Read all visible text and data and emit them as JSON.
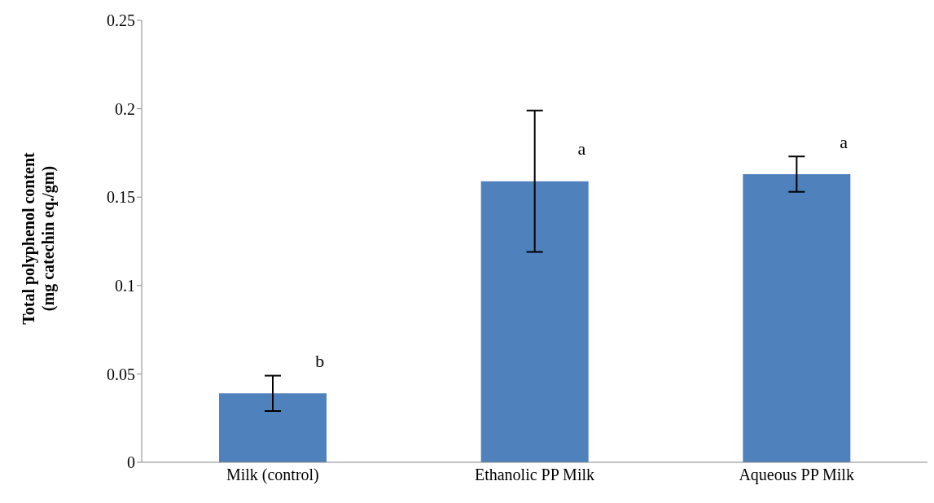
{
  "chart_data": {
    "type": "bar",
    "ylabel": "Total polyphenol content\n(mg catechin eq./gm)",
    "categories": [
      "Milk (control)",
      "Ethanolic PP Milk",
      "Aqueous PP Milk"
    ],
    "values": [
      0.039,
      0.159,
      0.163
    ],
    "errors": [
      0.01,
      0.04,
      0.01
    ],
    "color": "#4f81bd",
    "ylim": [
      0,
      0.25
    ],
    "yticks": [
      0,
      0.05,
      0.1,
      0.15,
      0.2,
      0.25
    ],
    "grid": false,
    "legend": false,
    "annotations": [
      "b",
      "a",
      "a"
    ]
  }
}
